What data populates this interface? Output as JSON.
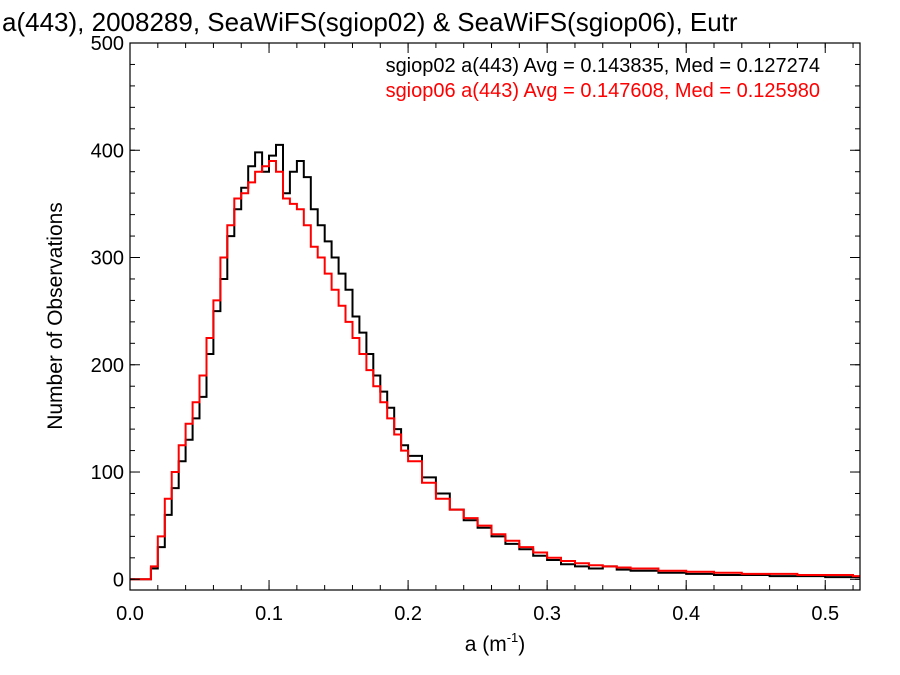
{
  "chart_data": {
    "type": "line",
    "title": "a(443), 2008289, SeaWiFS(sgiop02) & SeaWiFS(sgiop06), Eutr",
    "xlabel_base": "a (m",
    "xlabel_exp": "-1",
    "xlabel_close": ")",
    "ylabel": "Number of Observations",
    "xlim": [
      0.0,
      0.525
    ],
    "ylim": [
      -10,
      500
    ],
    "x_ticks": [
      0.0,
      0.1,
      0.2,
      0.3,
      0.4,
      0.5
    ],
    "x_tick_labels": [
      "0.0",
      "0.1",
      "0.2",
      "0.3",
      "0.4",
      "0.5"
    ],
    "y_ticks": [
      0,
      100,
      200,
      300,
      400,
      500
    ],
    "y_tick_labels": [
      "0",
      "100",
      "200",
      "300",
      "400",
      "500"
    ],
    "x_minor_step": 0.02,
    "y_minor_step": 20,
    "grid": false,
    "annotations": [
      {
        "text": "sgiop02 a(443) Avg = 0.143835, Med = 0.127274",
        "color": "#000000"
      },
      {
        "text": "sgiop06 a(443) Avg = 0.147608, Med = 0.125980",
        "color": "#ff0000"
      }
    ],
    "series": [
      {
        "color": "#000000",
        "x": [
          0.0,
          0.01,
          0.015,
          0.02,
          0.025,
          0.03,
          0.035,
          0.04,
          0.045,
          0.05,
          0.055,
          0.06,
          0.065,
          0.07,
          0.075,
          0.08,
          0.085,
          0.09,
          0.095,
          0.1,
          0.105,
          0.11,
          0.115,
          0.12,
          0.125,
          0.13,
          0.135,
          0.14,
          0.145,
          0.15,
          0.155,
          0.16,
          0.165,
          0.17,
          0.175,
          0.18,
          0.185,
          0.19,
          0.195,
          0.2,
          0.21,
          0.22,
          0.23,
          0.24,
          0.25,
          0.26,
          0.27,
          0.28,
          0.29,
          0.3,
          0.31,
          0.32,
          0.33,
          0.34,
          0.35,
          0.36,
          0.38,
          0.4,
          0.42,
          0.44,
          0.46,
          0.48,
          0.5,
          0.52
        ],
        "y": [
          0,
          0,
          10,
          30,
          60,
          85,
          110,
          130,
          150,
          170,
          210,
          250,
          280,
          320,
          345,
          365,
          385,
          398,
          380,
          395,
          405,
          360,
          380,
          390,
          375,
          345,
          330,
          315,
          300,
          285,
          270,
          245,
          230,
          210,
          190,
          175,
          160,
          140,
          125,
          115,
          95,
          80,
          65,
          55,
          48,
          40,
          33,
          28,
          22,
          18,
          14,
          12,
          10,
          12,
          9,
          8,
          6,
          5,
          4,
          4,
          3,
          3,
          2,
          2
        ]
      },
      {
        "color": "#ff0000",
        "x": [
          0.0,
          0.01,
          0.015,
          0.02,
          0.025,
          0.03,
          0.035,
          0.04,
          0.045,
          0.05,
          0.055,
          0.06,
          0.065,
          0.07,
          0.075,
          0.08,
          0.085,
          0.09,
          0.095,
          0.1,
          0.105,
          0.11,
          0.115,
          0.12,
          0.125,
          0.13,
          0.135,
          0.14,
          0.145,
          0.15,
          0.155,
          0.16,
          0.165,
          0.17,
          0.175,
          0.18,
          0.185,
          0.19,
          0.195,
          0.2,
          0.21,
          0.22,
          0.23,
          0.24,
          0.25,
          0.26,
          0.27,
          0.28,
          0.29,
          0.3,
          0.31,
          0.32,
          0.33,
          0.34,
          0.35,
          0.36,
          0.38,
          0.4,
          0.42,
          0.44,
          0.46,
          0.48,
          0.5,
          0.52
        ],
        "y": [
          0,
          0,
          12,
          40,
          75,
          100,
          125,
          145,
          165,
          190,
          225,
          260,
          300,
          330,
          355,
          360,
          370,
          380,
          385,
          390,
          380,
          355,
          350,
          345,
          330,
          310,
          300,
          285,
          270,
          255,
          240,
          225,
          210,
          195,
          180,
          165,
          150,
          135,
          120,
          110,
          90,
          75,
          65,
          57,
          50,
          42,
          36,
          30,
          25,
          20,
          17,
          15,
          13,
          12,
          11,
          10,
          8,
          7,
          6,
          5,
          5,
          4,
          4,
          3
        ]
      }
    ]
  }
}
